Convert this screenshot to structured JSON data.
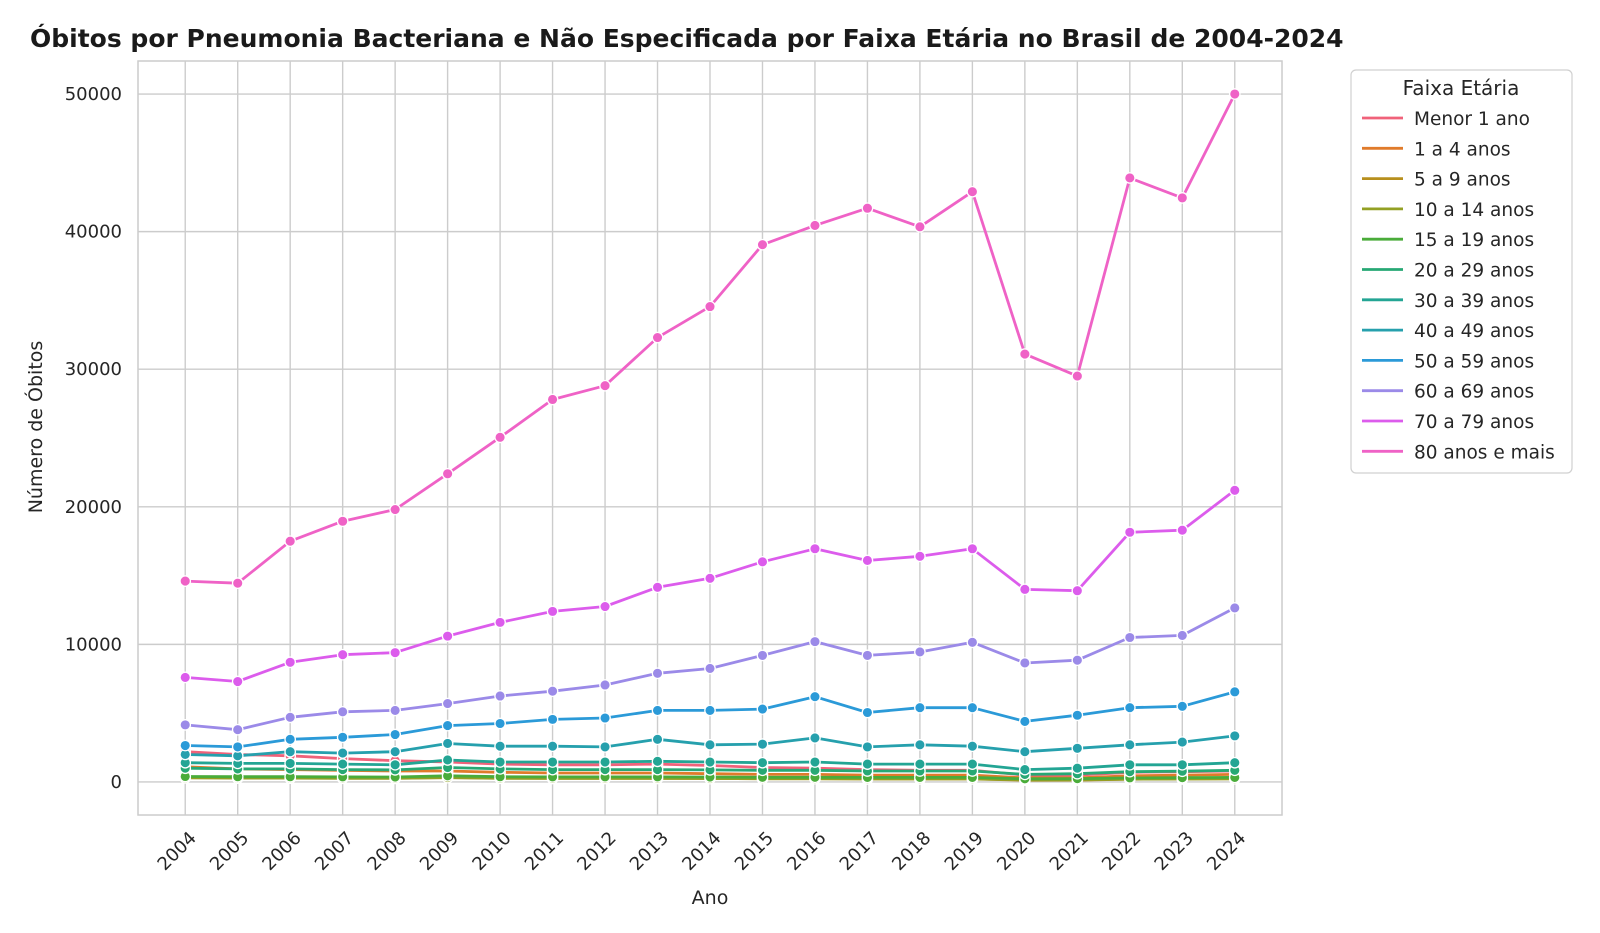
{
  "chart_data": {
    "type": "line",
    "title": "Óbitos por Pneumonia Bacteriana e Não Especificada por Faixa Etária no Brasil de 2004-2024",
    "xlabel": "Ano",
    "ylabel": "Número de Óbitos",
    "x": [
      2004,
      2005,
      2006,
      2007,
      2008,
      2009,
      2010,
      2011,
      2012,
      2013,
      2014,
      2015,
      2016,
      2017,
      2018,
      2019,
      2020,
      2021,
      2022,
      2023,
      2024
    ],
    "ylim": [
      -2400,
      52400
    ],
    "yticks": [
      0,
      10000,
      20000,
      30000,
      40000,
      50000
    ],
    "grid": true,
    "legend": {
      "title": "Faixa Etária",
      "placement": "outside-top-right"
    },
    "series": [
      {
        "name": "Menor 1 ano",
        "color": "#f0627a",
        "values": [
          2200,
          2000,
          1900,
          1700,
          1550,
          1450,
          1300,
          1250,
          1250,
          1300,
          1200,
          1050,
          1000,
          900,
          850,
          850,
          500,
          500,
          700,
          750,
          800
        ]
      },
      {
        "name": "1 a 4 anos",
        "color": "#e07b2b",
        "values": [
          1100,
          950,
          900,
          850,
          800,
          800,
          700,
          650,
          650,
          650,
          600,
          550,
          550,
          500,
          500,
          500,
          300,
          300,
          450,
          500,
          550
        ]
      },
      {
        "name": "5 a 9 anos",
        "color": "#b78f1d",
        "values": [
          350,
          300,
          300,
          300,
          280,
          320,
          280,
          260,
          260,
          260,
          250,
          240,
          240,
          220,
          220,
          220,
          130,
          140,
          200,
          220,
          240
        ]
      },
      {
        "name": "10 a 14 anos",
        "color": "#93a024",
        "values": [
          300,
          280,
          280,
          270,
          260,
          320,
          270,
          260,
          260,
          260,
          250,
          240,
          240,
          230,
          230,
          230,
          150,
          160,
          210,
          220,
          230
        ]
      },
      {
        "name": "15 a 19 anos",
        "color": "#4aac3a",
        "values": [
          400,
          380,
          380,
          370,
          360,
          450,
          380,
          370,
          370,
          370,
          360,
          340,
          340,
          330,
          330,
          330,
          230,
          240,
          300,
          310,
          330
        ]
      },
      {
        "name": "20 a 29 anos",
        "color": "#27a874",
        "values": [
          1000,
          950,
          950,
          900,
          880,
          1050,
          950,
          900,
          900,
          900,
          880,
          850,
          850,
          800,
          800,
          800,
          550,
          600,
          750,
          780,
          850
        ]
      },
      {
        "name": "30 a 39 anos",
        "color": "#23a594",
        "values": [
          1400,
          1350,
          1350,
          1300,
          1250,
          1600,
          1450,
          1450,
          1450,
          1500,
          1450,
          1400,
          1450,
          1300,
          1300,
          1300,
          900,
          1000,
          1250,
          1250,
          1400
        ]
      },
      {
        "name": "40 a 49 anos",
        "color": "#26a0ad",
        "values": [
          2000,
          1900,
          2200,
          2100,
          2200,
          2800,
          2600,
          2600,
          2550,
          3100,
          2700,
          2750,
          3200,
          2550,
          2700,
          2600,
          2200,
          2450,
          2700,
          2900,
          3350
        ]
      },
      {
        "name": "50 a 59 anos",
        "color": "#2b9ad8",
        "values": [
          2650,
          2550,
          3100,
          3250,
          3450,
          4100,
          4250,
          4550,
          4650,
          5200,
          5200,
          5300,
          6200,
          5050,
          5400,
          5400,
          4400,
          4850,
          5400,
          5500,
          6550
        ]
      },
      {
        "name": "60 a 69 anos",
        "color": "#9b8ae8",
        "values": [
          4150,
          3800,
          4700,
          5100,
          5200,
          5700,
          6250,
          6600,
          7050,
          7900,
          8250,
          9200,
          10200,
          9200,
          9450,
          10150,
          8650,
          8850,
          10500,
          10650,
          12650
        ]
      },
      {
        "name": "70 a 79 anos",
        "color": "#dc5cec",
        "values": [
          7600,
          7300,
          8700,
          9250,
          9400,
          10600,
          11600,
          12400,
          12750,
          14150,
          14800,
          16000,
          16950,
          16100,
          16400,
          16950,
          14000,
          13900,
          18150,
          18300,
          21200
        ]
      },
      {
        "name": "80 anos e mais",
        "color": "#ef62c6",
        "values": [
          14600,
          14450,
          17500,
          18950,
          19800,
          22400,
          25050,
          27800,
          28800,
          32300,
          34550,
          39050,
          40450,
          41700,
          40350,
          42900,
          31100,
          29500,
          43900,
          42450,
          50000
        ]
      }
    ]
  }
}
